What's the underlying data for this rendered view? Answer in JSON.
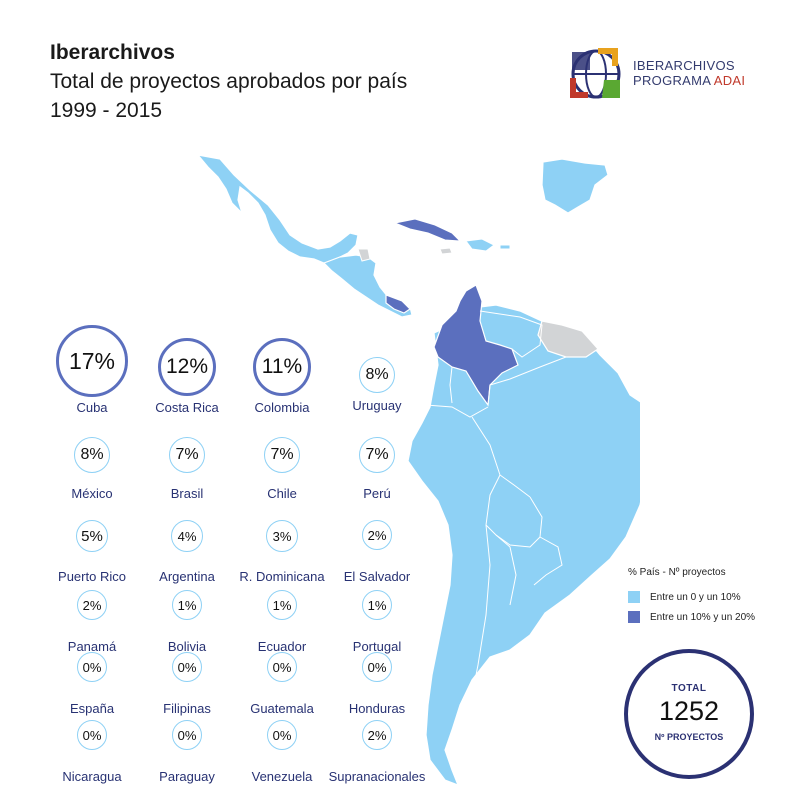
{
  "header": {
    "title": "Iberarchivos",
    "subtitle": "Total de proyectos aprobados por país",
    "period": "1999 - 2015"
  },
  "logo": {
    "line1": "IBERARCHIVOS",
    "line2_prefix": "PROGRAMA ",
    "line2_accent": "ADAI"
  },
  "colors": {
    "low": "#8ed1f5",
    "high": "#5b6fbe",
    "nodata": "#d2d4d6",
    "navy": "#283273"
  },
  "chart_data": {
    "type": "bubble-grid",
    "unit": "%",
    "items": [
      {
        "country": "Cuba",
        "value": 17
      },
      {
        "country": "Costa Rica",
        "value": 12
      },
      {
        "country": "Colombia",
        "value": 11
      },
      {
        "country": "Uruguay",
        "value": 8
      },
      {
        "country": "México",
        "value": 8
      },
      {
        "country": "Brasil",
        "value": 7
      },
      {
        "country": "Chile",
        "value": 7
      },
      {
        "country": "Perú",
        "value": 7
      },
      {
        "country": "Puerto Rico",
        "value": 5
      },
      {
        "country": "Argentina",
        "value": 4
      },
      {
        "country": "R. Dominicana",
        "value": 3
      },
      {
        "country": "El Salvador",
        "value": 2
      },
      {
        "country": "Panamá",
        "value": 2
      },
      {
        "country": "Bolivia",
        "value": 1
      },
      {
        "country": "Ecuador",
        "value": 1
      },
      {
        "country": "Portugal",
        "value": 1
      },
      {
        "country": "España",
        "value": 0
      },
      {
        "country": "Filipinas",
        "value": 0
      },
      {
        "country": "Guatemala",
        "value": 0
      },
      {
        "country": "Honduras",
        "value": 0
      },
      {
        "country": "Nicaragua",
        "value": 0
      },
      {
        "country": "Paraguay",
        "value": 0
      },
      {
        "country": "Venezuela",
        "value": 0
      },
      {
        "country": "Supranacionales",
        "value": 2
      }
    ],
    "legend": {
      "title": "% País - Nº proyectos",
      "items": [
        {
          "label": "Entre un 0 y un 10%",
          "color": "#8ed1f5"
        },
        {
          "label": "Entre un 10% y un 20%",
          "color": "#5b6fbe"
        }
      ]
    },
    "total": {
      "label": "TOTAL",
      "value": 1252,
      "sublabel": "Nº PROYECTOS"
    }
  }
}
